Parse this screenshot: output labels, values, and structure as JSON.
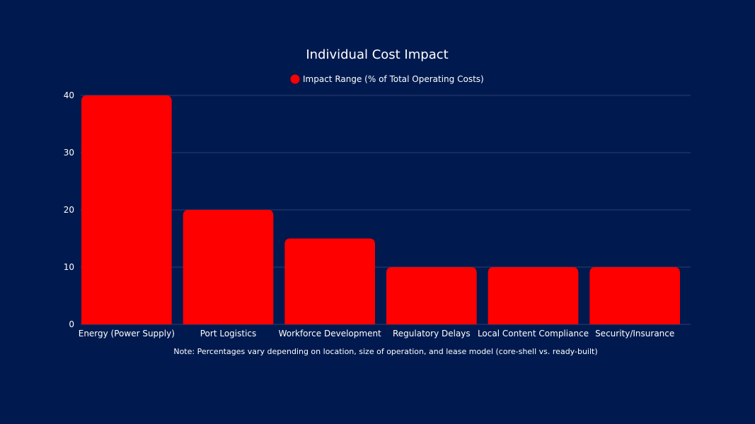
{
  "chart_data": {
    "type": "bar",
    "title": "Individual Cost Impact",
    "legend": {
      "position": "top",
      "entries": [
        "Impact Range (% of Total Operating Costs)"
      ]
    },
    "categories": [
      "Energy (Power Supply)",
      "Port Logistics",
      "Workforce Development",
      "Regulatory Delays",
      "Local Content Compliance",
      "Security/Insurance"
    ],
    "series": [
      {
        "name": "Impact Range (% of Total Operating Costs)",
        "values": [
          40,
          20,
          15,
          10,
          10,
          10
        ],
        "color": "#ff0000"
      }
    ],
    "ylim": [
      0,
      40
    ],
    "yticks": [
      0,
      10,
      20,
      30,
      40
    ],
    "grid": true,
    "note": "Note: Percentages vary depending on location, size of operation, and lease model (core-shell vs. ready-built)",
    "background": "#001a4f",
    "grid_color": "#2b3f6c"
  }
}
